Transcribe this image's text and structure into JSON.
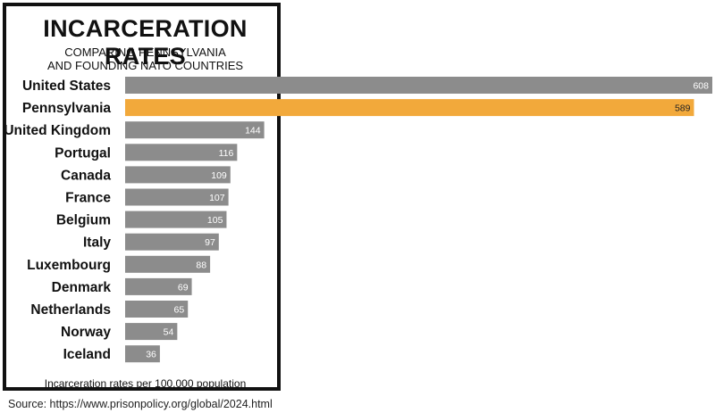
{
  "chart_data": {
    "type": "bar",
    "orientation": "horizontal",
    "title": "INCARCERATION RATES",
    "subtitle_line1": "COMPARING PENNSYLVANIA",
    "subtitle_line2": "AND FOUNDING NATO COUNTRIES",
    "footnote": "Incarceration rates per 100,000 population",
    "categories": [
      "United States",
      "Pennsylvania",
      "United Kingdom",
      "Portugal",
      "Canada",
      "France",
      "Belgium",
      "Italy",
      "Luxembourg",
      "Denmark",
      "Netherlands",
      "Norway",
      "Iceland"
    ],
    "values": [
      608,
      589,
      144,
      116,
      109,
      107,
      105,
      97,
      88,
      69,
      65,
      54,
      36
    ],
    "highlight": "Pennsylvania",
    "colors": {
      "default": "#8c8c8c",
      "highlight": "#f2a93b",
      "value_label_default": "#ffffff",
      "value_label_highlight": "#222222"
    },
    "xlim": [
      0,
      608
    ],
    "grid": false,
    "legend": "none"
  },
  "source": "Source: https://www.prisonpolicy.org/global/2024.html"
}
